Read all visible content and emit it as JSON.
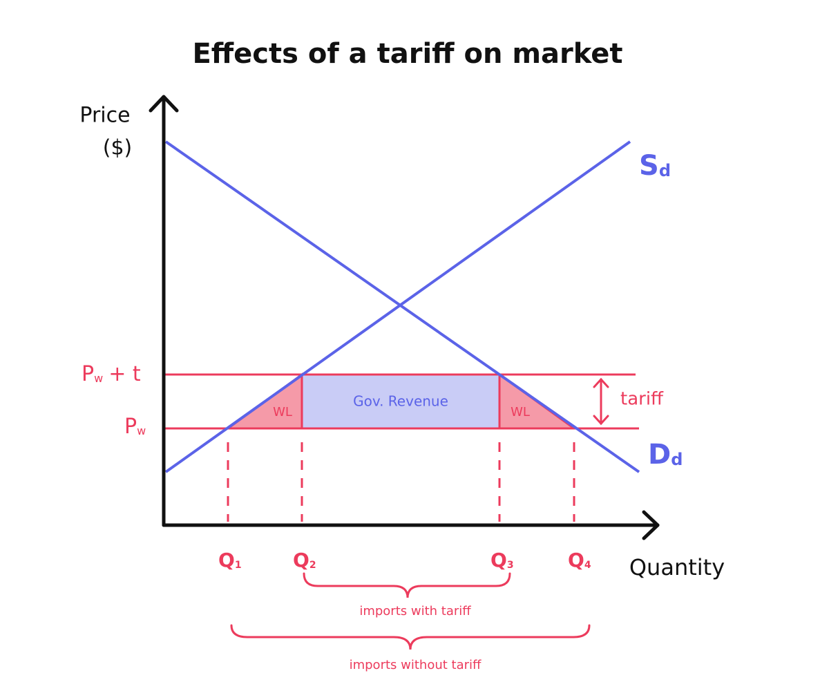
{
  "title": "Effects of a tariff on market",
  "axes": {
    "y_label": [
      "Price",
      "($)"
    ],
    "x_label": "Quantity"
  },
  "curves": {
    "supply": {
      "main": "S",
      "sub": "d"
    },
    "demand": {
      "main": "D",
      "sub": "d"
    }
  },
  "prices": {
    "world_plus_tariff": {
      "main": "P",
      "sub": "w",
      "rest": "+ t"
    },
    "world": {
      "main": "P",
      "sub": "w"
    }
  },
  "quantities": [
    {
      "main": "Q",
      "sub": "1"
    },
    {
      "main": "Q",
      "sub": "2"
    },
    {
      "main": "Q",
      "sub": "3"
    },
    {
      "main": "Q",
      "sub": "4"
    }
  ],
  "regions": {
    "gov_revenue": "Gov. Revenue",
    "welfare_loss_left": "WL",
    "welfare_loss_right": "WL"
  },
  "tariff_label": "tariff",
  "braces": {
    "with_tariff": "imports with tariff",
    "without_tariff": "imports without tariff"
  }
}
